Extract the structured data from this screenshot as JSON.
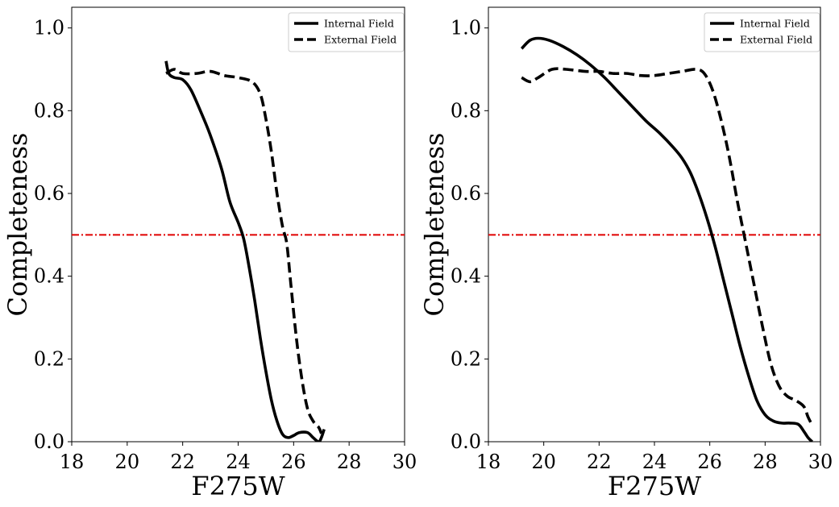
{
  "chart_data": [
    {
      "type": "line",
      "xlabel": "F275W",
      "ylabel": "Completeness",
      "xlim": [
        18,
        30
      ],
      "ylim": [
        0,
        1.05
      ],
      "xticks": [
        "18",
        "20",
        "22",
        "24",
        "26",
        "28",
        "30"
      ],
      "yticks": [
        "0.0",
        "0.2",
        "0.4",
        "0.6",
        "0.8",
        "1.0"
      ],
      "grid": false,
      "legend_position": "top-right",
      "reference_line": {
        "y": 0.5,
        "color": "#e00000",
        "style": "dash-dot"
      },
      "series": [
        {
          "name": "Internal Field",
          "style": "solid",
          "color": "#000000",
          "x": [
            21.4,
            21.5,
            21.7,
            22.0,
            22.3,
            22.7,
            23.0,
            23.4,
            23.7,
            24.0,
            24.2,
            24.4,
            24.6,
            24.8,
            25.0,
            25.2,
            25.4,
            25.6,
            25.8,
            26.0,
            26.2,
            26.5,
            26.7,
            26.9,
            27.0,
            27.1
          ],
          "y": [
            0.92,
            0.89,
            0.88,
            0.875,
            0.85,
            0.79,
            0.74,
            0.66,
            0.58,
            0.53,
            0.49,
            0.42,
            0.34,
            0.25,
            0.17,
            0.1,
            0.05,
            0.018,
            0.01,
            0.015,
            0.022,
            0.022,
            0.01,
            0.0,
            0.01,
            0.03
          ]
        },
        {
          "name": "External Field",
          "style": "dashed",
          "color": "#000000",
          "x": [
            21.4,
            21.7,
            22.0,
            22.5,
            23.0,
            23.5,
            24.0,
            24.5,
            24.8,
            25.0,
            25.2,
            25.4,
            25.6,
            25.75,
            25.9,
            26.1,
            26.3,
            26.5,
            26.7,
            26.9,
            27.0
          ],
          "y": [
            0.89,
            0.9,
            0.89,
            0.89,
            0.895,
            0.885,
            0.88,
            0.87,
            0.84,
            0.78,
            0.7,
            0.6,
            0.52,
            0.48,
            0.38,
            0.25,
            0.15,
            0.08,
            0.05,
            0.035,
            0.02
          ]
        }
      ]
    },
    {
      "type": "line",
      "xlabel": "F275W",
      "ylabel": "Completeness",
      "xlim": [
        18,
        30
      ],
      "ylim": [
        0,
        1.05
      ],
      "xticks": [
        "18",
        "20",
        "22",
        "24",
        "26",
        "28",
        "30"
      ],
      "yticks": [
        "0.0",
        "0.2",
        "0.4",
        "0.6",
        "0.8",
        "1.0"
      ],
      "grid": false,
      "legend_position": "top-right",
      "reference_line": {
        "y": 0.5,
        "color": "#e00000",
        "style": "dash-dot"
      },
      "series": [
        {
          "name": "Internal Field",
          "style": "solid",
          "color": "#000000",
          "x": [
            19.2,
            19.5,
            19.8,
            20.2,
            20.7,
            21.2,
            21.7,
            22.2,
            22.7,
            23.2,
            23.7,
            24.2,
            24.7,
            25.0,
            25.3,
            25.6,
            25.9,
            26.2,
            26.5,
            26.8,
            27.1,
            27.4,
            27.7,
            28.0,
            28.3,
            28.6,
            28.9,
            29.2,
            29.4,
            29.55,
            29.7
          ],
          "y": [
            0.95,
            0.97,
            0.975,
            0.97,
            0.955,
            0.935,
            0.91,
            0.88,
            0.845,
            0.81,
            0.775,
            0.745,
            0.71,
            0.685,
            0.65,
            0.6,
            0.54,
            0.47,
            0.39,
            0.31,
            0.23,
            0.16,
            0.1,
            0.065,
            0.05,
            0.045,
            0.045,
            0.042,
            0.025,
            0.01,
            0.0
          ]
        },
        {
          "name": "External Field",
          "style": "dashed",
          "color": "#000000",
          "x": [
            19.2,
            19.5,
            19.8,
            20.3,
            20.8,
            21.5,
            22.0,
            22.5,
            23.0,
            23.5,
            24.0,
            24.5,
            25.0,
            25.5,
            25.8,
            26.1,
            26.4,
            26.7,
            27.0,
            27.3,
            27.6,
            27.9,
            28.2,
            28.5,
            28.8,
            29.1,
            29.4,
            29.55,
            29.7
          ],
          "y": [
            0.88,
            0.87,
            0.88,
            0.9,
            0.9,
            0.895,
            0.895,
            0.89,
            0.89,
            0.885,
            0.885,
            0.89,
            0.895,
            0.9,
            0.89,
            0.85,
            0.78,
            0.69,
            0.58,
            0.48,
            0.38,
            0.28,
            0.19,
            0.135,
            0.11,
            0.1,
            0.085,
            0.06,
            0.04
          ]
        }
      ]
    }
  ]
}
